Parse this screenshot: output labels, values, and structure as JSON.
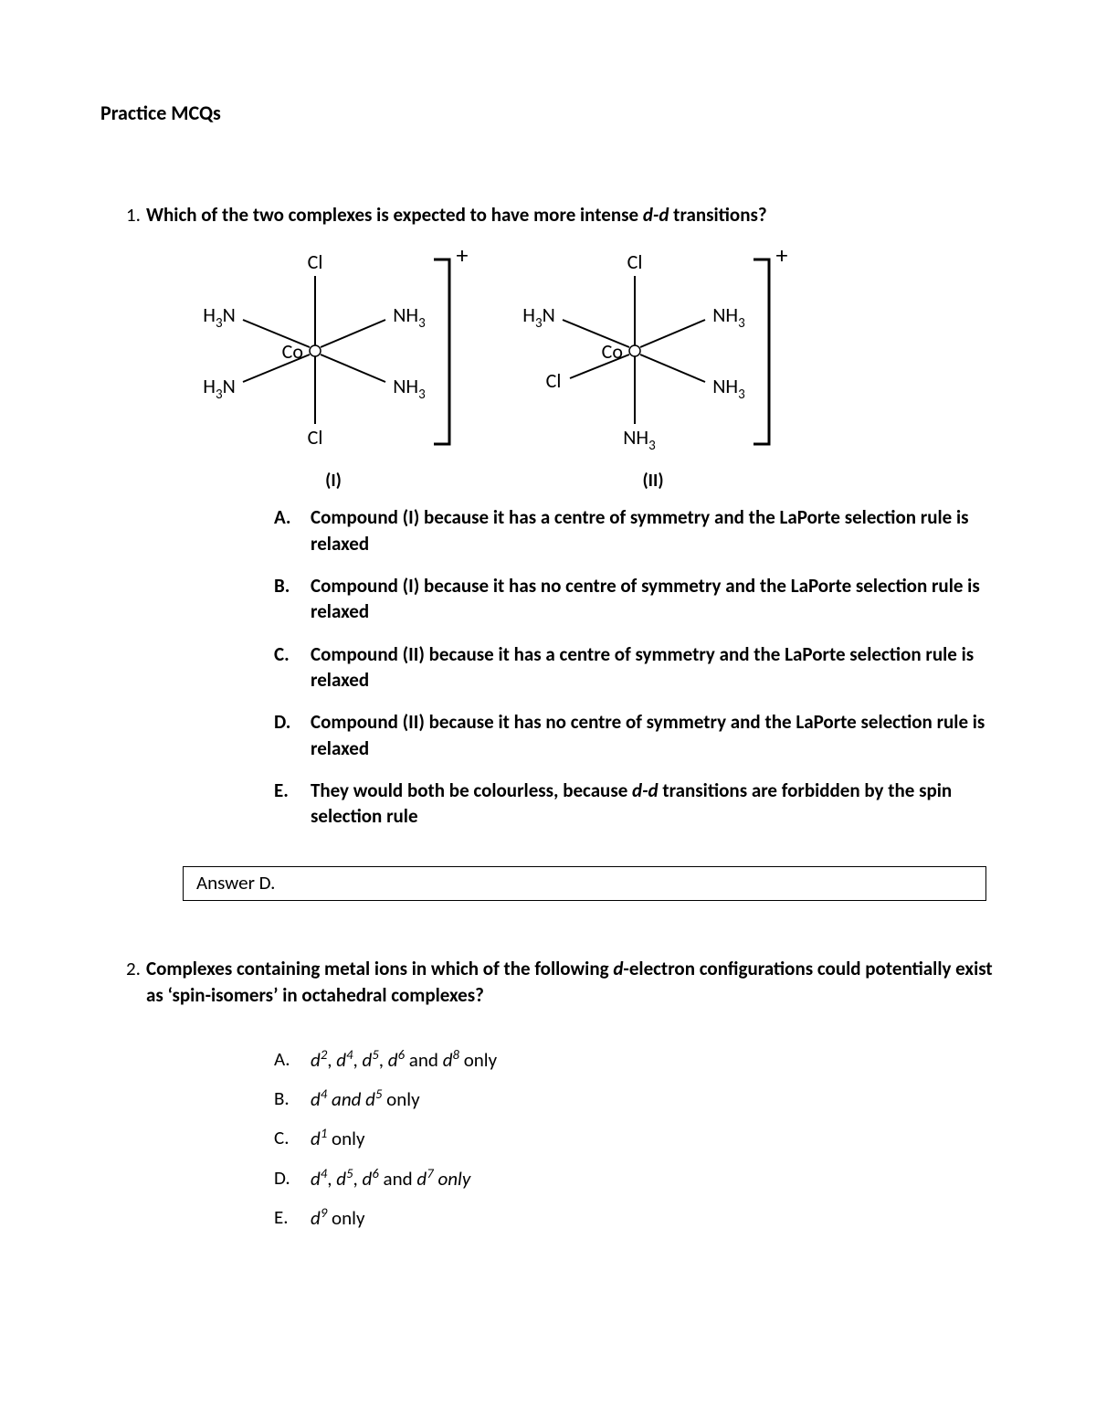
{
  "colors": {
    "text": "#000000",
    "background": "#ffffff",
    "border": "#000000"
  },
  "heading": "Practice MCQs",
  "q1": {
    "number": "1.",
    "text_pre": "Which of the two complexes is expected to have more intense ",
    "text_ital": "d-d",
    "text_post": " transitions?",
    "complex1": {
      "center": "Co",
      "top": "Cl",
      "bottom": "Cl",
      "upper_left": "H₃N",
      "lower_left": "H₃N",
      "upper_right": "NH₃",
      "lower_right": "NH₃",
      "charge": "+",
      "caption": "(I)"
    },
    "complex2": {
      "center": "Co",
      "top": "Cl",
      "bottom": "NH₃",
      "upper_left": "H₃N",
      "lower_left": "Cl",
      "upper_right": "NH₃",
      "lower_right": "NH₃",
      "charge": "+",
      "caption": "(II)"
    },
    "options": {
      "A": "Compound (I) because it has a centre of symmetry and the LaPorte selection rule is relaxed",
      "B": "Compound (I) because it has no centre of symmetry and the LaPorte selection rule is relaxed",
      "C": "Compound (II) because it has a centre of symmetry and the LaPorte selection rule is relaxed",
      "D": "Compound (II) because it has no centre of symmetry and the LaPorte selection rule is relaxed",
      "E_pre": "They would both be colourless, because ",
      "E_ital": "d-d",
      "E_post": " transitions are forbidden by the spin selection rule"
    },
    "answer": "Answer D."
  },
  "q2": {
    "number": "2.",
    "text_pre": "Complexes containing metal ions in which of the following ",
    "text_ital": "d",
    "text_post": "-electron configurations could potentially exist as ‘spin-isomers’ in octahedral complexes?",
    "options": {
      "A": {
        "letter": "A.",
        "parts": [
          "d|2|i",
          ", ",
          "d|4|i",
          ", ",
          "d|5|i",
          ", ",
          "d|6|i",
          " and ",
          "d|8|i",
          " only"
        ]
      },
      "B": {
        "letter": "B.",
        "parts": [
          "d|4|i",
          " ",
          "and d|5|ii",
          " only"
        ]
      },
      "C": {
        "letter": "C.",
        "parts": [
          "d|1|i",
          " only"
        ]
      },
      "D": {
        "letter": "D.",
        "parts": [
          "d|4|i",
          ", ",
          "d|5|i",
          ", ",
          "d|6|i",
          " and ",
          "d|7|i",
          " ",
          "only|0|ii"
        ]
      },
      "E": {
        "letter": "E.",
        "parts": [
          "d|9|i",
          " only"
        ]
      }
    }
  }
}
